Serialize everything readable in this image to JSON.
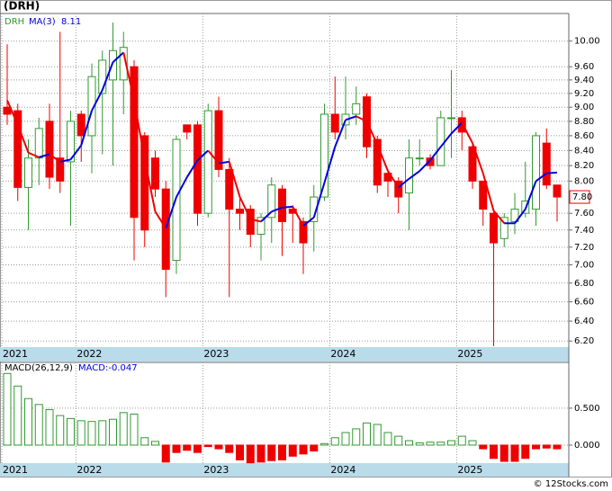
{
  "chart_data": [
    {
      "type": "candlestick",
      "title": "(DRH)",
      "name": "DRH",
      "categories": [
        "2021",
        null,
        null,
        null,
        null,
        null,
        null,
        "2022",
        null,
        null,
        null,
        null,
        null,
        null,
        null,
        null,
        null,
        null,
        null,
        "2023",
        null,
        null,
        null,
        null,
        null,
        null,
        null,
        null,
        null,
        null,
        null,
        "2024",
        null,
        null,
        null,
        null,
        null,
        null,
        null,
        null,
        null,
        null,
        null,
        "2025",
        null,
        null,
        null,
        null,
        null,
        null,
        null,
        null,
        null
      ],
      "open": [
        9.0,
        8.95,
        7.92,
        8.3,
        8.8,
        8.3,
        8.25,
        8.9,
        8.6,
        9.2,
        9.4,
        9.4,
        9.6,
        8.6,
        8.3,
        7.9,
        7.05,
        8.75,
        8.75,
        7.6,
        8.95,
        8.15,
        7.65,
        7.65,
        7.35,
        7.55,
        7.9,
        7.65,
        7.5,
        7.5,
        7.8,
        8.9,
        8.75,
        8.9,
        9.15,
        8.55,
        8.1,
        8.0,
        7.85,
        8.3,
        8.3,
        8.2,
        8.85,
        8.85,
        8.45,
        8.0,
        7.6,
        7.3,
        7.5,
        7.6,
        7.65,
        8.5,
        7.95
      ],
      "high": [
        9.95,
        9.05,
        8.55,
        8.85,
        9.05,
        10.15,
        8.95,
        8.95,
        9.65,
        9.85,
        10.3,
        10.15,
        9.7,
        8.65,
        8.4,
        8.0,
        8.6,
        8.75,
        8.8,
        9.05,
        9.15,
        8.3,
        7.8,
        7.7,
        7.6,
        8.05,
        7.95,
        7.7,
        7.55,
        7.95,
        9.05,
        9.45,
        9.45,
        9.3,
        9.2,
        8.6,
        8.15,
        8.05,
        8.55,
        8.55,
        8.35,
        8.95,
        9.55,
        8.95,
        8.5,
        8.0,
        7.65,
        7.6,
        7.85,
        8.25,
        8.65,
        8.7,
        7.95
      ],
      "low": [
        8.75,
        7.75,
        7.4,
        7.95,
        7.9,
        7.85,
        7.45,
        8.25,
        8.1,
        8.35,
        8.2,
        8.9,
        7.05,
        7.2,
        7.8,
        6.65,
        6.9,
        8.55,
        7.45,
        7.55,
        8.05,
        6.65,
        7.4,
        7.2,
        7.05,
        7.25,
        7.1,
        7.25,
        6.9,
        7.15,
        7.75,
        8.55,
        8.55,
        8.75,
        8.3,
        7.85,
        7.8,
        7.6,
        7.4,
        8.2,
        8.15,
        8.2,
        8.3,
        8.4,
        7.9,
        7.45,
        6.15,
        7.2,
        7.35,
        7.55,
        7.45,
        7.9,
        7.5
      ],
      "close": [
        8.9,
        7.92,
        8.3,
        8.7,
        8.05,
        8.0,
        8.8,
        8.6,
        9.45,
        9.7,
        9.85,
        9.9,
        7.55,
        7.4,
        7.9,
        6.95,
        8.55,
        8.65,
        7.6,
        8.95,
        8.15,
        7.65,
        7.6,
        7.35,
        7.55,
        7.95,
        7.5,
        7.6,
        7.25,
        7.8,
        8.9,
        8.65,
        8.9,
        9.05,
        8.45,
        7.95,
        8.0,
        7.8,
        8.3,
        8.3,
        8.2,
        8.85,
        8.85,
        8.65,
        8.0,
        7.65,
        7.25,
        7.55,
        7.65,
        7.75,
        8.6,
        7.95,
        7.8
      ],
      "up_color": "#339933",
      "down_color": "#ee0000",
      "ma": {
        "name": "MA(3)",
        "up_color": "#0000dd",
        "down_color": "#ee0000",
        "values": [
          9.1,
          8.75,
          8.37,
          8.31,
          8.35,
          8.25,
          8.28,
          8.47,
          8.95,
          9.25,
          9.67,
          9.82,
          9.1,
          8.28,
          7.62,
          7.42,
          7.8,
          8.05,
          8.27,
          8.4,
          8.23,
          8.25,
          7.8,
          7.53,
          7.5,
          7.62,
          7.67,
          7.68,
          7.45,
          7.55,
          7.98,
          8.45,
          8.82,
          8.87,
          8.8,
          8.48,
          8.13,
          7.92,
          8.03,
          8.13,
          8.27,
          8.45,
          8.63,
          8.78,
          8.5,
          8.1,
          7.63,
          7.48,
          7.48,
          7.65,
          8.0,
          8.1,
          8.11
        ]
      },
      "price_marker": {
        "value": 7.8,
        "label": "7.80"
      },
      "log_scale": true,
      "grid": true,
      "ylim": [
        6.14,
        10.45
      ],
      "yticks": [
        {
          "value": 6.2,
          "label": "6.20"
        },
        {
          "value": 6.4,
          "label": "6.40"
        },
        {
          "value": 6.6,
          "label": "6.60"
        },
        {
          "value": 6.8,
          "label": "6.80"
        },
        {
          "value": 7.0,
          "label": "7.00"
        },
        {
          "value": 7.2,
          "label": "7.20"
        },
        {
          "value": 7.4,
          "label": "7.40"
        },
        {
          "value": 7.6,
          "label": "7.60"
        },
        {
          "value": 8.0,
          "label": "8.00"
        },
        {
          "value": 8.2,
          "label": "8.20"
        },
        {
          "value": 8.4,
          "label": "8.40"
        },
        {
          "value": 8.6,
          "label": "8.60"
        },
        {
          "value": 8.8,
          "label": "8.80"
        },
        {
          "value": 9.0,
          "label": "9.00"
        },
        {
          "value": 9.2,
          "label": "9.20"
        },
        {
          "value": 9.4,
          "label": "9.40"
        },
        {
          "value": 9.6,
          "label": "9.60"
        },
        {
          "value": 10.0,
          "label": "10.00"
        }
      ]
    },
    {
      "type": "bar",
      "name": "MACD(26,12,9)",
      "label": "MACD:-0.047",
      "categories": [
        "2021",
        null,
        null,
        null,
        null,
        null,
        null,
        "2022",
        null,
        null,
        null,
        null,
        null,
        null,
        null,
        null,
        null,
        null,
        null,
        "2023",
        null,
        null,
        null,
        null,
        null,
        null,
        null,
        null,
        null,
        null,
        null,
        "2024",
        null,
        null,
        null,
        null,
        null,
        null,
        null,
        null,
        null,
        null,
        null,
        "2025",
        null,
        null,
        null,
        null,
        null,
        null,
        null,
        null,
        null
      ],
      "values": [
        0.97,
        0.8,
        0.63,
        0.55,
        0.48,
        0.4,
        0.36,
        0.33,
        0.32,
        0.33,
        0.35,
        0.44,
        0.42,
        0.1,
        0.05,
        -0.23,
        -0.1,
        -0.07,
        -0.1,
        -0.02,
        -0.05,
        -0.1,
        -0.2,
        -0.24,
        -0.23,
        -0.21,
        -0.2,
        -0.15,
        -0.12,
        -0.08,
        0.02,
        0.1,
        0.17,
        0.22,
        0.3,
        0.28,
        0.17,
        0.12,
        0.06,
        0.03,
        0.04,
        0.04,
        0.06,
        0.12,
        0.06,
        -0.05,
        -0.18,
        -0.22,
        -0.22,
        -0.18,
        -0.05,
        -0.04,
        -0.05
      ],
      "up_color": "#339933",
      "down_color": "#ee0000",
      "grid": true,
      "ylim": [
        -0.244,
        1.12
      ],
      "yticks": [
        {
          "value": 0,
          "label": "0.000"
        },
        {
          "value": 0.5,
          "label": "0.500"
        }
      ]
    }
  ],
  "credit": "© 12Stocks.com"
}
